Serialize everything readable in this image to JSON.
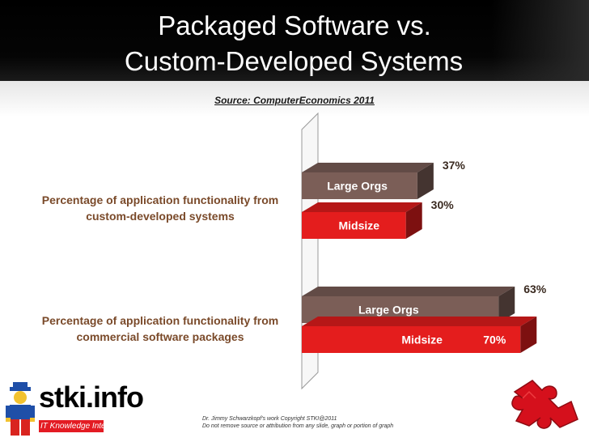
{
  "slide": {
    "title_line1": "Packaged Software vs.",
    "title_line2": "Custom-Developed Systems",
    "source": "Source: ComputerEconomics 2011",
    "footer_line1": "Dr. Jimmy Schwarzkopf's work  Copyright STKI@2011",
    "footer_line2": "Do not remove source or attribution from any slide, graph or portion of graph",
    "logo_text": "stki.info",
    "logo_tagline": "IT Knowledge Integrators"
  },
  "chart_data": {
    "type": "bar",
    "orientation": "horizontal",
    "categories": [
      "Percentage of application functionality from custom-developed systems",
      "Percentage of application functionality from commercial software packages"
    ],
    "category_lines": [
      [
        "Percentage of application functionality from",
        "custom-developed systems"
      ],
      [
        "Percentage of application functionality from",
        "commercial software packages"
      ]
    ],
    "series": [
      {
        "name": "Large Orgs",
        "values": [
          37,
          63
        ],
        "value_labels": [
          "37%",
          "63%"
        ],
        "color": "#7b5e57"
      },
      {
        "name": "Midsize",
        "values": [
          30,
          70
        ],
        "value_labels": [
          "30%",
          "70%"
        ],
        "color": "#e41d1d"
      }
    ],
    "xlim": [
      0,
      100
    ],
    "grid": false,
    "legend": "none"
  }
}
